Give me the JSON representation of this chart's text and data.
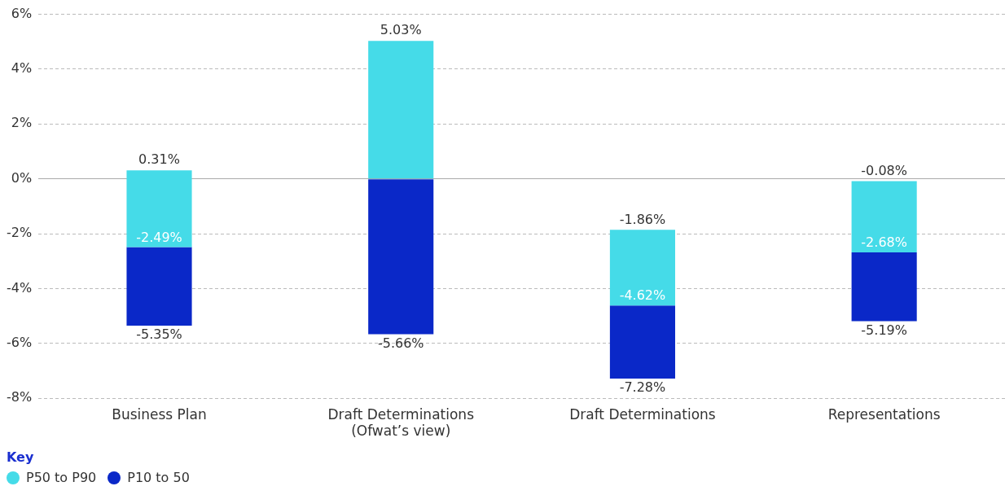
{
  "chart_data": {
    "type": "bar",
    "categories": [
      "Business Plan",
      "Draft Determinations\n(Ofwat’s view)",
      "Draft Determinations",
      "Representations"
    ],
    "series": [
      {
        "name": "P50 to P90",
        "color": "#45dbe8",
        "base": [
          -2.49,
          0,
          -4.62,
          -2.68
        ],
        "values": [
          2.8,
          5.03,
          2.76,
          2.6
        ]
      },
      {
        "name": "P10 to 50",
        "color": "#0a28c8",
        "base": [
          -5.35,
          -5.66,
          -7.28,
          -5.19
        ],
        "values": [
          2.86,
          5.66,
          2.66,
          2.51
        ]
      }
    ],
    "annotations": [
      {
        "text": "0.31%",
        "x": "Business Plan",
        "y": 0.31
      },
      {
        "text": "5.03%",
        "x": "Draft Determinations\n(Ofwat’s view)",
        "y": 5.03
      },
      {
        "text": "-1.86%",
        "x": "Draft Determinations",
        "y": -1.86
      },
      {
        "text": "-0.08%",
        "x": "Representations",
        "y": -0.08
      },
      {
        "text": "-5.35%",
        "x": "Business Plan",
        "y": -5.35
      },
      {
        "text": "-5.66%",
        "x": "Draft Determinations\n(Ofwat’s view)",
        "y": -5.66
      },
      {
        "text": "-7.28%",
        "x": "Draft Determinations",
        "y": -7.28
      },
      {
        "text": "-5.19%",
        "x": "Representations",
        "y": -5.19
      },
      {
        "text": "-2.49%",
        "x": "Business Plan",
        "y": -2.49
      },
      {
        "text": "-4.62%",
        "x": "Draft Determinations",
        "y": -4.62
      },
      {
        "text": "-2.68%",
        "x": "Representations",
        "y": -2.68
      }
    ],
    "ylim": [
      -8,
      6
    ],
    "yticks": [
      {
        "value": -8,
        "label": "-8%"
      },
      {
        "value": -6,
        "label": "-6%"
      },
      {
        "value": -4,
        "label": "-4%"
      },
      {
        "value": -2,
        "label": "-2%"
      },
      {
        "value": 0,
        "label": "0%"
      },
      {
        "value": 2,
        "label": "2%"
      },
      {
        "value": 4,
        "label": "4%"
      },
      {
        "value": 6,
        "label": "6%"
      }
    ],
    "grid": "y",
    "legend": "bottom left",
    "legend_title": "Key"
  }
}
